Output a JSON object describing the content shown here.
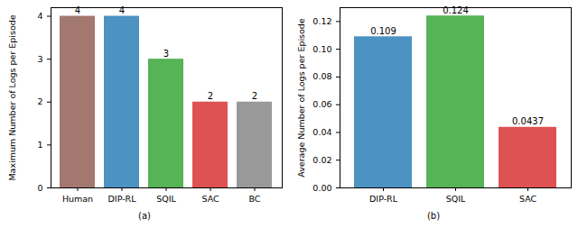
{
  "chart_data": [
    {
      "type": "bar",
      "caption": "(a)",
      "ylabel": "Maximum Number of Logs per Episode",
      "categories": [
        "Human",
        "DIP-RL",
        "SQIL",
        "SAC",
        "BC"
      ],
      "values": [
        4,
        4,
        3,
        2,
        2
      ],
      "colors": [
        "#a3786f",
        "#4c92c3",
        "#56b356",
        "#de5253",
        "#999999"
      ],
      "ylim": [
        0,
        4.2
      ],
      "yticks": [
        0,
        1,
        2,
        3,
        4
      ],
      "data_labels": true
    },
    {
      "type": "bar",
      "caption": "(b)",
      "ylabel": "Average Number of Logs per Episode",
      "categories": [
        "DIP-RL",
        "SQIL",
        "SAC"
      ],
      "values": [
        0.109,
        0.124,
        0.0437
      ],
      "colors": [
        "#4c92c3",
        "#56b356",
        "#de5253"
      ],
      "ylim": [
        0,
        0.13
      ],
      "yticks": [
        {
          "value": 0,
          "label": "0.00"
        },
        {
          "value": 0.02,
          "label": "0.02"
        },
        {
          "value": 0.04,
          "label": "0.04"
        },
        {
          "value": 0.06,
          "label": "0.06"
        },
        {
          "value": 0.08,
          "label": "0.08"
        },
        {
          "value": 0.1,
          "label": "0.10"
        },
        {
          "value": 0.12,
          "label": "0.12"
        }
      ],
      "data_labels": true
    }
  ]
}
